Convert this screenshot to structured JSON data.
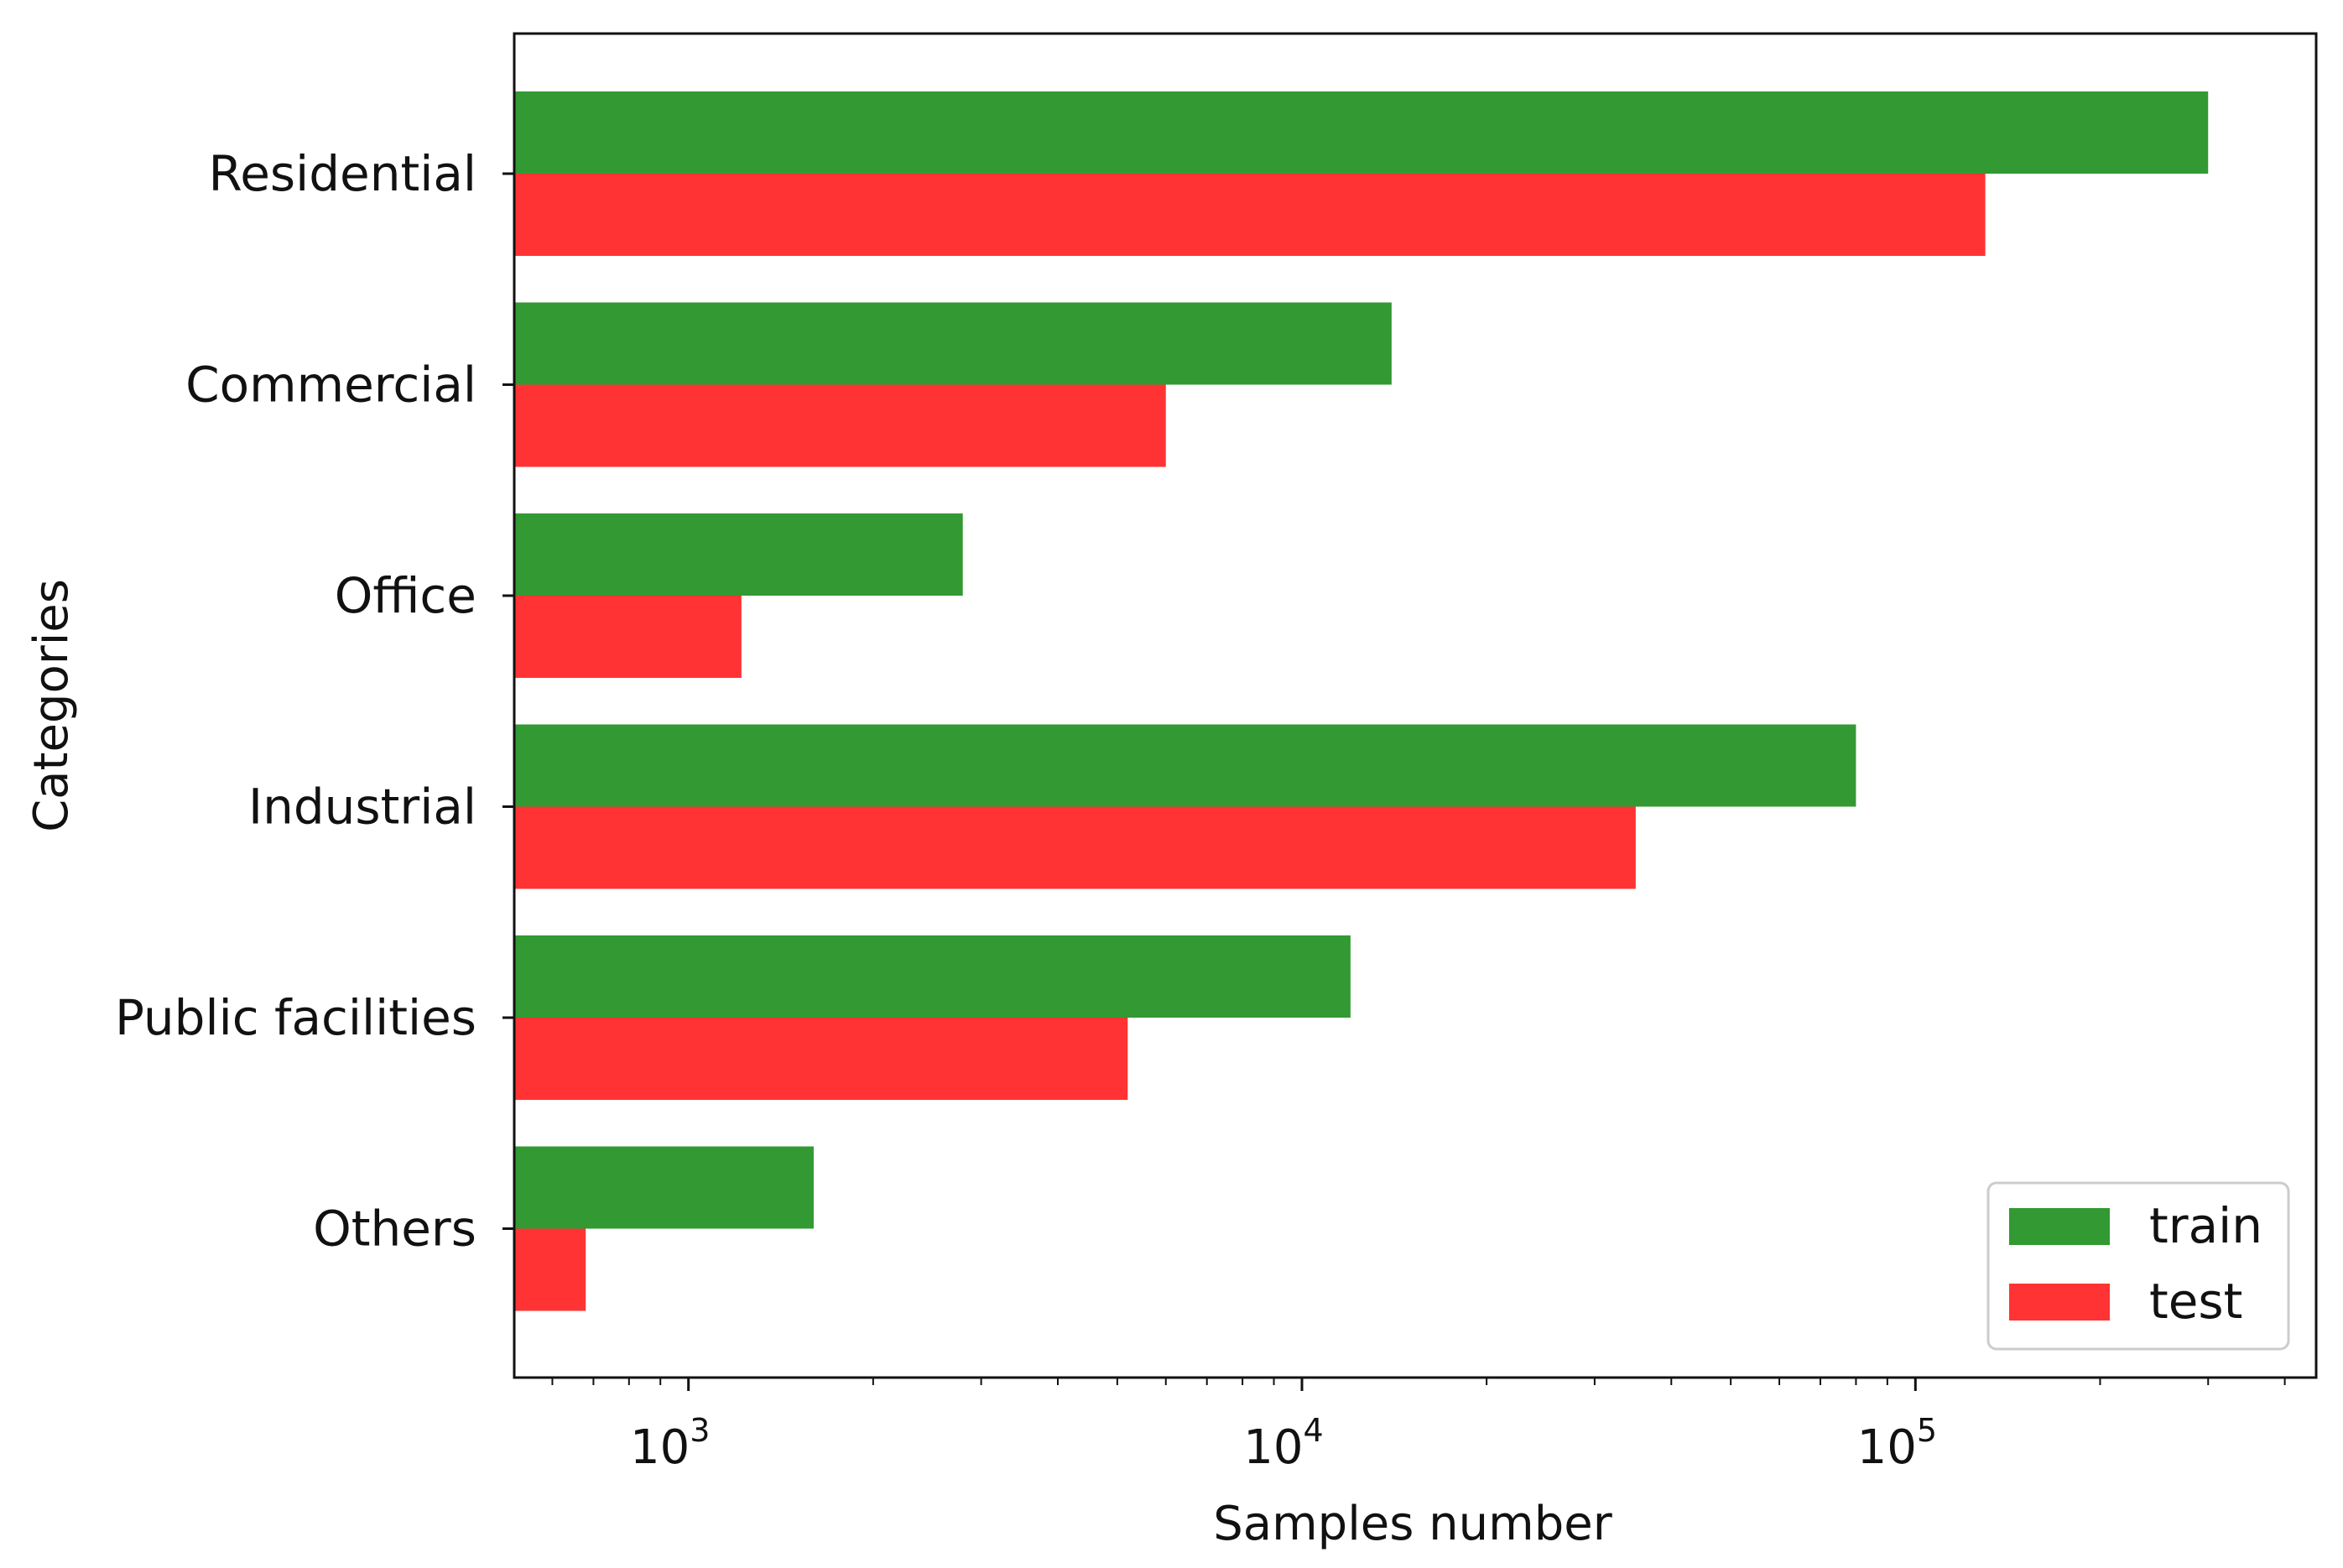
{
  "colors": {
    "train": "#339933",
    "test": "#ff3333",
    "axis": "#111111",
    "legend_border": "#cccccc"
  },
  "chart_data": {
    "type": "bar",
    "orientation": "horizontal",
    "xscale": "log",
    "xlim": [
      520,
      450000
    ],
    "xlabel": "Samples number",
    "ylabel": "Categories",
    "grid": false,
    "legend_position": "lower-right",
    "xticks": [
      {
        "base": "10",
        "exp": "3",
        "value": 1000
      },
      {
        "base": "10",
        "exp": "4",
        "value": 10000
      },
      {
        "base": "10",
        "exp": "5",
        "value": 100000
      }
    ],
    "categories": [
      "Residential",
      "Commercial",
      "Office",
      "Industrial",
      "Public facilities",
      "Others"
    ],
    "series": [
      {
        "name": "train",
        "values": [
          300000,
          14000,
          2800,
          80000,
          12000,
          1600
        ]
      },
      {
        "name": "test",
        "values": [
          130000,
          6000,
          1220,
          35000,
          5200,
          680
        ]
      }
    ]
  }
}
